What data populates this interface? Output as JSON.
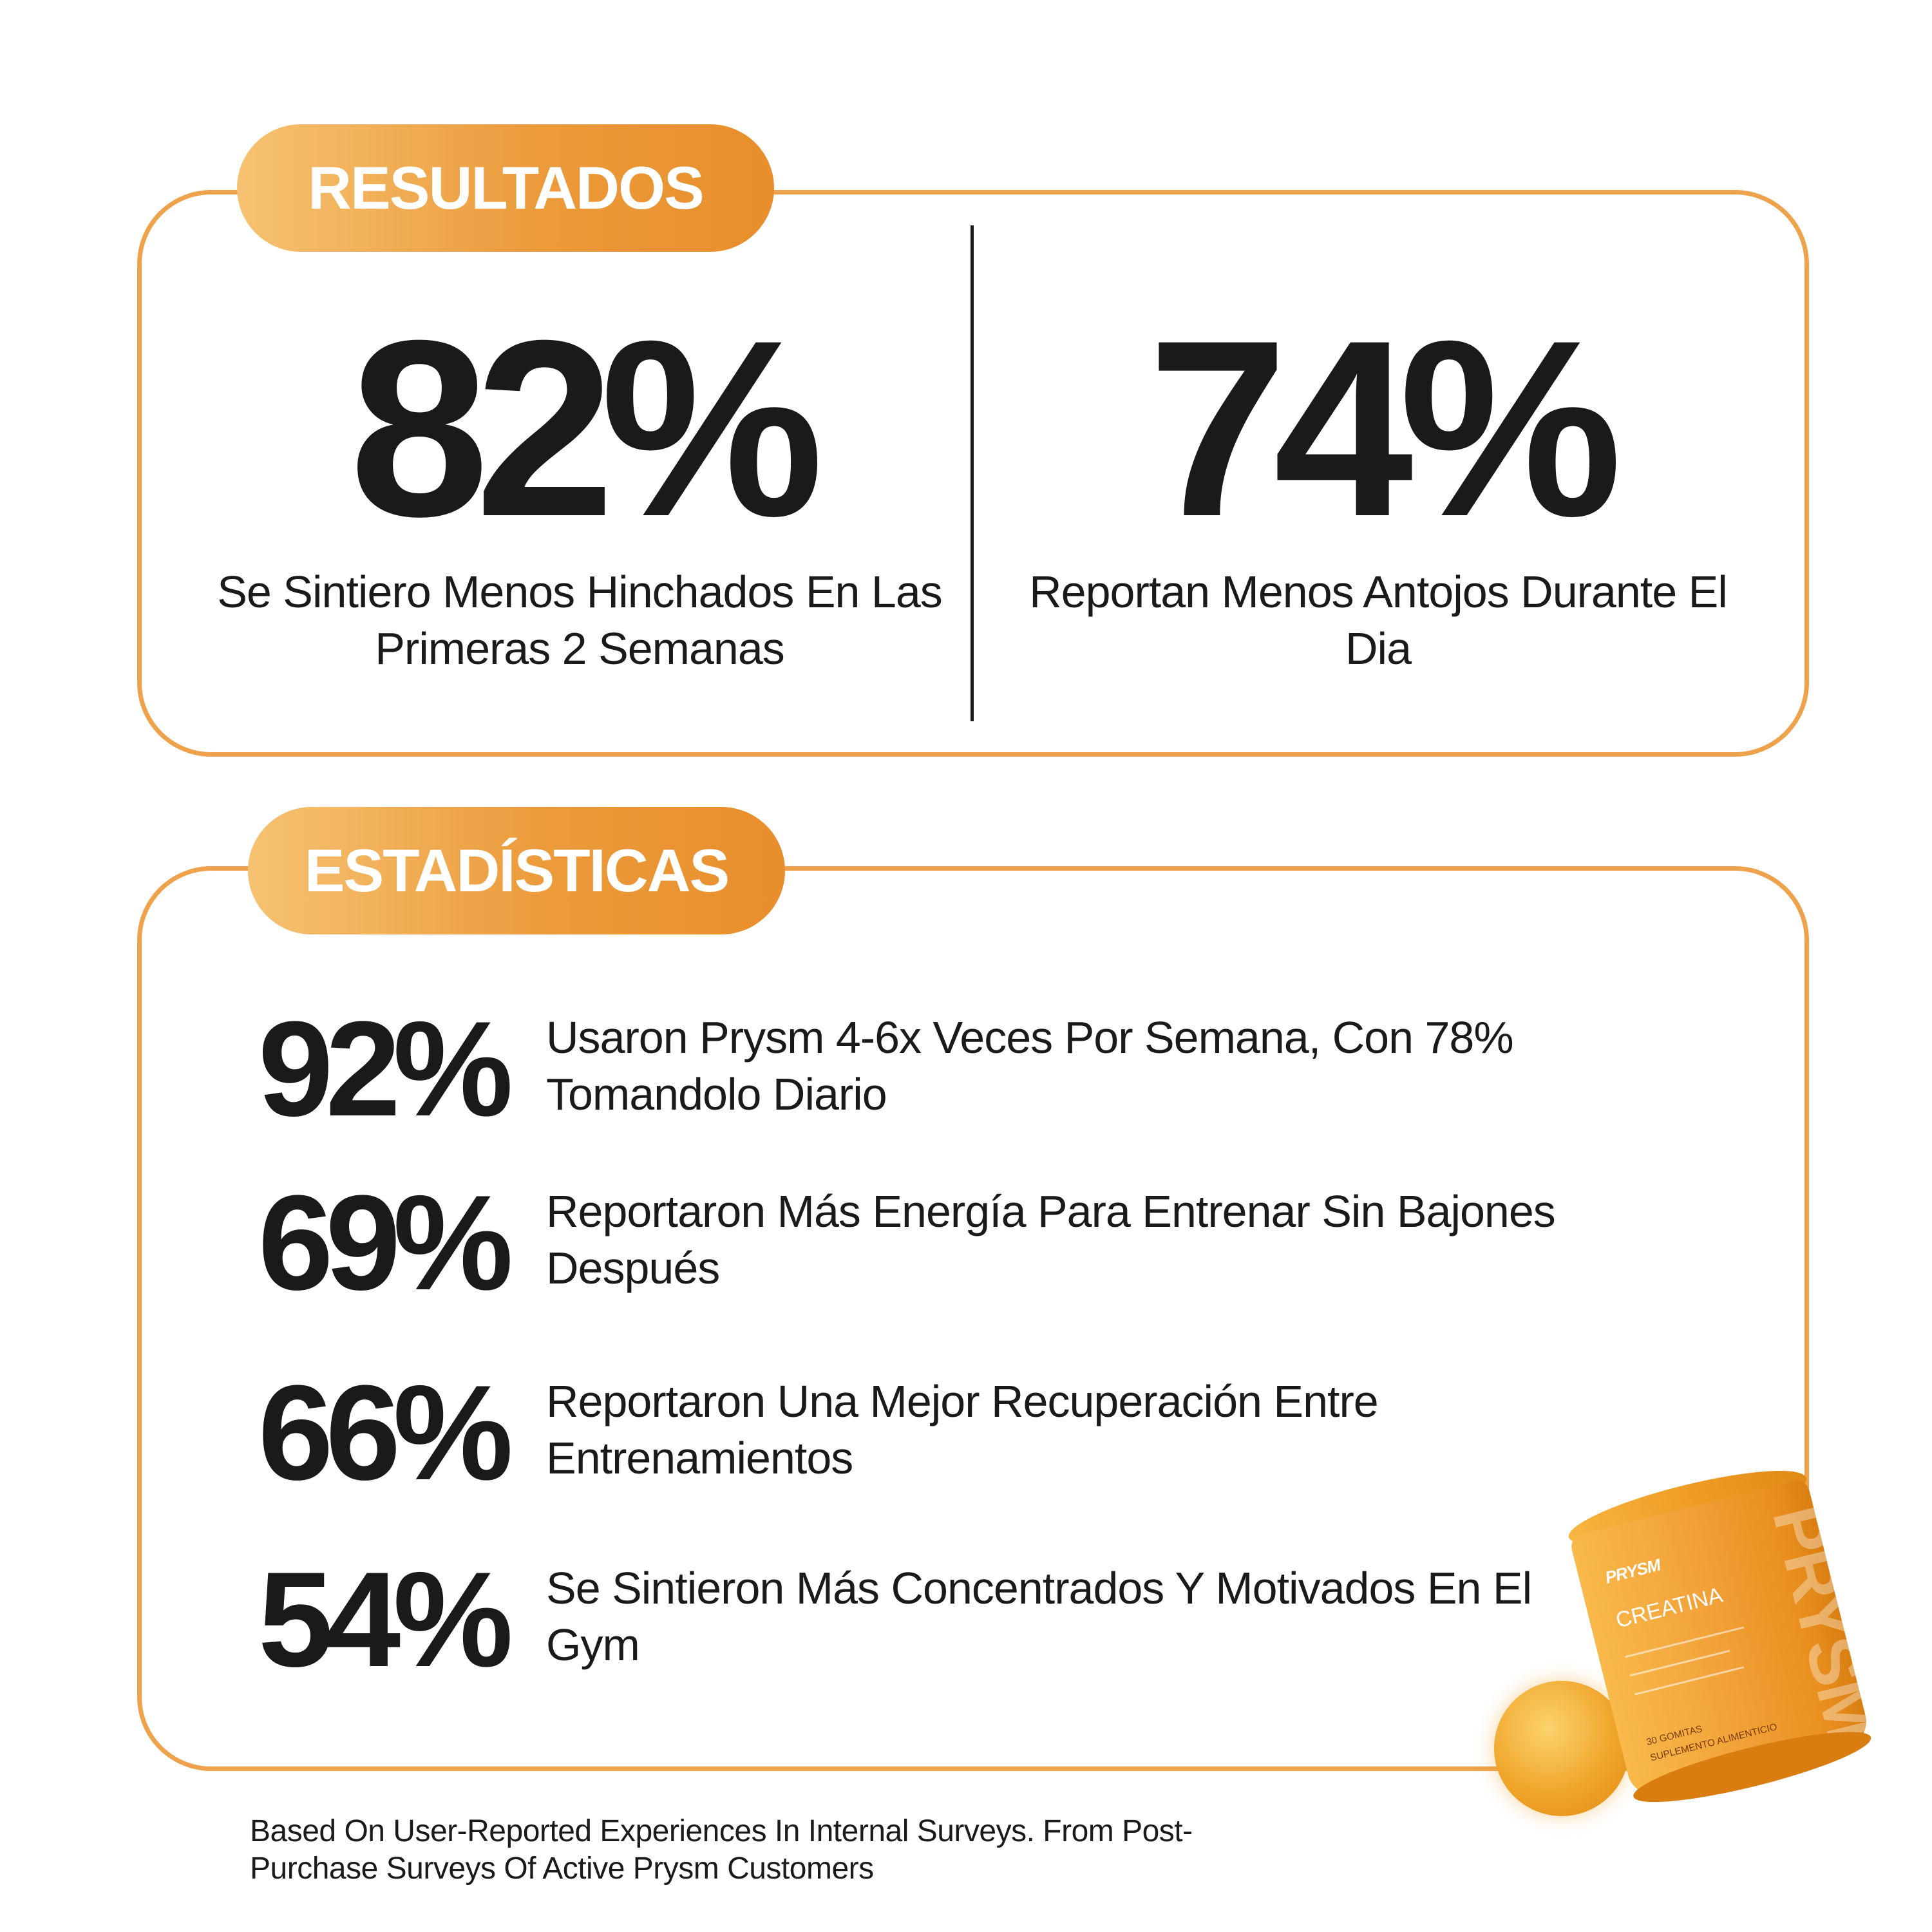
{
  "results": {
    "label": "RESULTADOS",
    "items": [
      {
        "value": "82%",
        "description": "Se Sintiero Menos Hinchados En Las Primeras 2 Semanas"
      },
      {
        "value": "74%",
        "description": "Reportan Menos Antojos Durante El Dia"
      }
    ]
  },
  "stats": {
    "label": "ESTADÍSTICAS",
    "items": [
      {
        "value": "92%",
        "description": "Usaron Prysm 4-6x Veces Por Semana, Con 78% Tomandolo Diario"
      },
      {
        "value": "69%",
        "description": "Reportaron Más Energía Para Entrenar Sin Bajones Después"
      },
      {
        "value": "66%",
        "description": "Reportaron Una Mejor Recuperación Entre Entrenamientos"
      },
      {
        "value": "54%",
        "description": "Se Sintieron Más Concentrados Y Motivados En El Gym"
      }
    ]
  },
  "footnote": "Based On User-Reported Experiences In Internal Surveys. From Post-Purchase Surveys Of Active Prysm Customers",
  "product": {
    "brand": "PRYSM",
    "name": "CREATINA",
    "count": "30 GOMITAS",
    "type": "SUPLEMENTO ALIMENTICIO"
  },
  "colors": {
    "accent": "#eea24c",
    "accent_dark": "#e88e2c",
    "text": "#1a1a1a"
  }
}
